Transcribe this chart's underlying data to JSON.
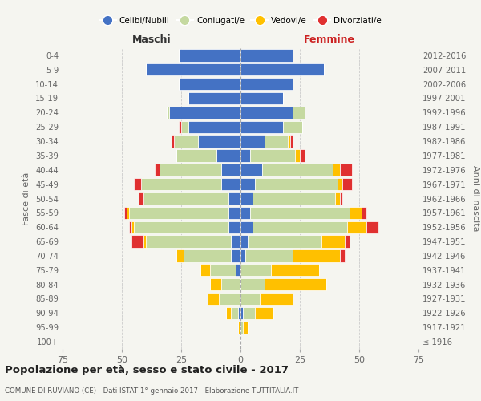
{
  "age_groups": [
    "100+",
    "95-99",
    "90-94",
    "85-89",
    "80-84",
    "75-79",
    "70-74",
    "65-69",
    "60-64",
    "55-59",
    "50-54",
    "45-49",
    "40-44",
    "35-39",
    "30-34",
    "25-29",
    "20-24",
    "15-19",
    "10-14",
    "5-9",
    "0-4"
  ],
  "birth_years": [
    "≤ 1916",
    "1917-1921",
    "1922-1926",
    "1927-1931",
    "1932-1936",
    "1937-1941",
    "1942-1946",
    "1947-1951",
    "1952-1956",
    "1957-1961",
    "1962-1966",
    "1967-1971",
    "1972-1976",
    "1977-1981",
    "1982-1986",
    "1987-1991",
    "1992-1996",
    "1997-2001",
    "2002-2006",
    "2007-2011",
    "2012-2016"
  ],
  "maschi": {
    "celibi": [
      0,
      0,
      1,
      0,
      0,
      2,
      4,
      4,
      5,
      5,
      5,
      8,
      8,
      10,
      18,
      22,
      30,
      22,
      26,
      40,
      26
    ],
    "coniugati": [
      0,
      0,
      3,
      9,
      8,
      11,
      20,
      36,
      40,
      42,
      36,
      34,
      26,
      17,
      10,
      3,
      1,
      0,
      0,
      0,
      0
    ],
    "vedovi": [
      0,
      1,
      2,
      5,
      5,
      4,
      3,
      1,
      1,
      1,
      0,
      0,
      0,
      0,
      0,
      0,
      0,
      0,
      0,
      0,
      0
    ],
    "divorziati": [
      0,
      0,
      0,
      0,
      0,
      0,
      0,
      5,
      1,
      1,
      2,
      3,
      2,
      0,
      1,
      1,
      0,
      0,
      0,
      0,
      0
    ]
  },
  "femmine": {
    "nubili": [
      0,
      0,
      1,
      0,
      0,
      0,
      2,
      3,
      5,
      4,
      5,
      6,
      9,
      4,
      10,
      18,
      22,
      18,
      22,
      35,
      22
    ],
    "coniugate": [
      0,
      1,
      5,
      8,
      10,
      13,
      20,
      31,
      40,
      42,
      35,
      35,
      30,
      19,
      10,
      8,
      5,
      0,
      0,
      0,
      0
    ],
    "vedove": [
      0,
      2,
      8,
      14,
      26,
      20,
      20,
      10,
      8,
      5,
      2,
      2,
      3,
      2,
      1,
      0,
      0,
      0,
      0,
      0,
      0
    ],
    "divorziate": [
      0,
      0,
      0,
      0,
      0,
      0,
      2,
      2,
      5,
      2,
      1,
      4,
      5,
      2,
      1,
      0,
      0,
      0,
      0,
      0,
      0
    ]
  },
  "colors": {
    "celibi": "#4472c4",
    "coniugati": "#c5d9a0",
    "vedovi": "#ffc000",
    "divorziati": "#e03030"
  },
  "title": "Popolazione per età, sesso e stato civile - 2017",
  "subtitle": "COMUNE DI RUVIANO (CE) - Dati ISTAT 1° gennaio 2017 - Elaborazione TUTTITALIA.IT",
  "xlabel_left": "Maschi",
  "xlabel_right": "Femmine",
  "ylabel_left": "Fasce di età",
  "ylabel_right": "Anni di nascita",
  "xlim": 75,
  "bg_color": "#f5f5f0",
  "bar_edge_color": "white",
  "grid_color": "#cccccc"
}
